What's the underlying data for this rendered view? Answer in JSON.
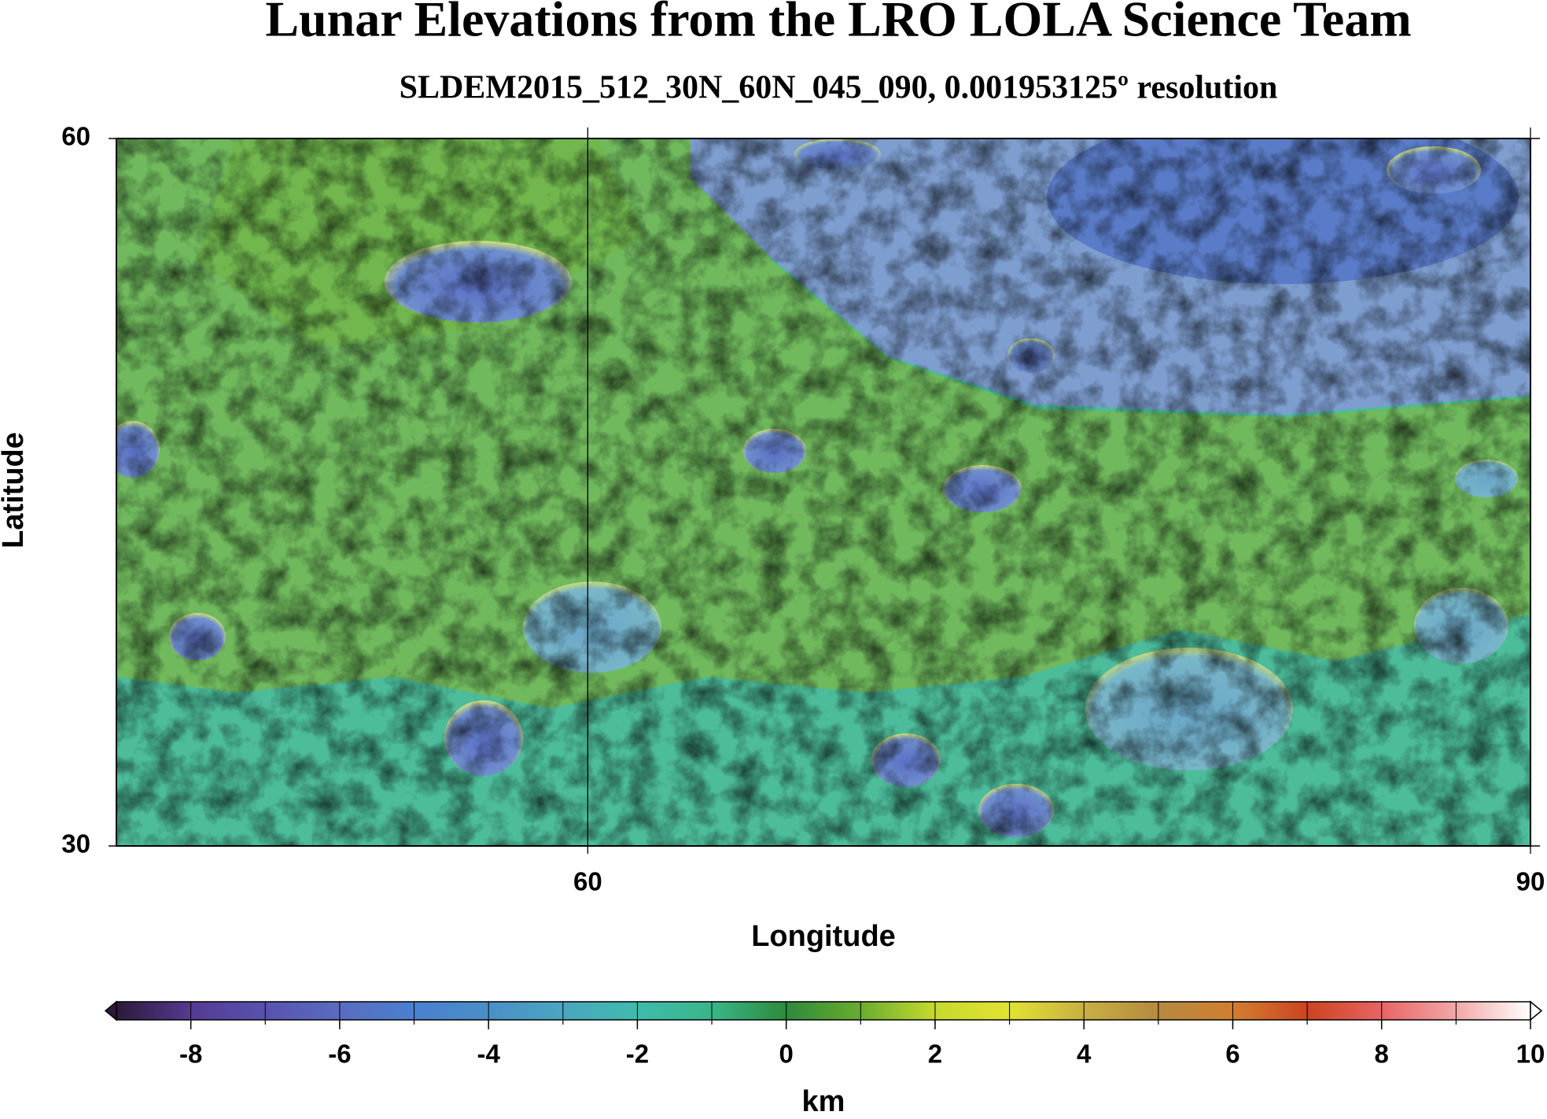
{
  "title": "Lunar Elevations from the LRO LOLA Science Team",
  "subtitle": "SLDEM2015_512_30N_60N_045_090, 0.001953125º resolution",
  "map": {
    "xlabel": "Longitude",
    "ylabel": "Latitude",
    "xlim": [
      45,
      90
    ],
    "xticks": [
      60,
      90
    ],
    "ylim": [
      30,
      60
    ],
    "yticks": [
      30,
      60
    ]
  },
  "colorbar": {
    "label": "km",
    "range": [
      -9,
      10
    ],
    "ticks": [
      -8,
      -6,
      -4,
      -2,
      0,
      2,
      4,
      6,
      8,
      10
    ],
    "colors": [
      "#2b1a3a",
      "#553a92",
      "#5753b0",
      "#5a6cc0",
      "#4a80d0",
      "#4a8fc8",
      "#4aa6bf",
      "#3fbbad",
      "#38b688",
      "#2f8a3c",
      "#6aac2e",
      "#c6da2e",
      "#e2e232",
      "#c8b042",
      "#b48a40",
      "#d27e30",
      "#cc4420",
      "#e86464",
      "#f2a8a8",
      "#ffffff"
    ]
  }
}
